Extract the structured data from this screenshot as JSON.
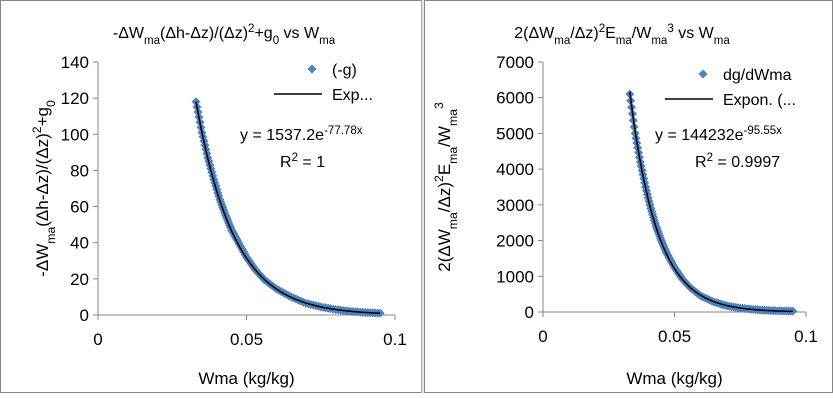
{
  "chart_data": [
    {
      "type": "scatter",
      "title_parts": [
        {
          "t": "-ΔW",
          "s": "n"
        },
        {
          "t": "ma",
          "s": "sub"
        },
        {
          "t": "(Δh-Δz)/(Δz)",
          "s": "n"
        },
        {
          "t": "2",
          "s": "sup"
        },
        {
          "t": "+g",
          "s": "n"
        },
        {
          "t": "0",
          "s": "sub"
        },
        {
          "t": " vs W",
          "s": "n"
        },
        {
          "t": "ma",
          "s": "sub"
        }
      ],
      "xlabel": "Wma (kg/kg)",
      "ylabel_parts": [
        {
          "t": "-ΔW",
          "s": "n"
        },
        {
          "t": "ma",
          "s": "sub"
        },
        {
          "t": "(Δh-Δz)/(Δz)",
          "s": "n"
        },
        {
          "t": "2",
          "s": "sup"
        },
        {
          "t": "+g",
          "s": "n"
        },
        {
          "t": "0",
          "s": "sub"
        }
      ],
      "xlim": [
        0,
        0.1
      ],
      "ylim": [
        0,
        140
      ],
      "xticks": [
        "0",
        "0.05",
        "0.1"
      ],
      "yticks": [
        "0",
        "20",
        "40",
        "60",
        "80",
        "100",
        "120",
        "140"
      ],
      "x_tick_values": [
        0,
        0.05,
        0.1
      ],
      "y_tick_values": [
        0,
        20,
        40,
        60,
        80,
        100,
        120,
        140
      ],
      "grid": false,
      "legend_position": "top-right",
      "series": [
        {
          "name": "(-g)",
          "kind": "markers",
          "color": "#4f81bd",
          "x": [
            0.033,
            0.035,
            0.037,
            0.039,
            0.041,
            0.043,
            0.045,
            0.047,
            0.05,
            0.053,
            0.056,
            0.06,
            0.065,
            0.07,
            0.075,
            0.08,
            0.085,
            0.09,
            0.095
          ],
          "y": [
            118,
            101,
            87,
            75,
            64,
            55,
            47,
            41,
            32,
            25,
            19.5,
            14.5,
            10,
            6.5,
            4.5,
            3,
            2,
            1.4,
            1
          ]
        },
        {
          "name": "Exp...",
          "kind": "trendline",
          "color": "#000000",
          "a": 1537.2,
          "b": -77.78,
          "x_range": [
            0.033,
            0.095
          ]
        }
      ],
      "annotations": [
        {
          "parts": [
            {
              "t": "y = 1537.2e",
              "s": "n"
            },
            {
              "t": "-77.78x",
              "s": "sup"
            }
          ]
        },
        {
          "parts": [
            {
              "t": "R",
              "s": "n"
            },
            {
              "t": "2",
              "s": "sup"
            },
            {
              "t": " = 1",
              "s": "n"
            }
          ]
        }
      ]
    },
    {
      "type": "scatter",
      "title_parts": [
        {
          "t": "2(ΔW",
          "s": "n"
        },
        {
          "t": "ma",
          "s": "sub"
        },
        {
          "t": "/Δz)",
          "s": "n"
        },
        {
          "t": "2",
          "s": "sup"
        },
        {
          "t": "E",
          "s": "n"
        },
        {
          "t": "ma",
          "s": "sub"
        },
        {
          "t": "/W",
          "s": "n"
        },
        {
          "t": "ma",
          "s": "sub"
        },
        {
          "t": "3",
          "s": "sup"
        },
        {
          "t": " vs W",
          "s": "n"
        },
        {
          "t": "ma",
          "s": "sub"
        }
      ],
      "xlabel": "Wma (kg/kg)",
      "ylabel_parts": [
        {
          "t": "2(ΔW",
          "s": "n"
        },
        {
          "t": "ma",
          "s": "sub"
        },
        {
          "t": "/Δz)",
          "s": "n"
        },
        {
          "t": "2",
          "s": "sup"
        },
        {
          "t": "E",
          "s": "n"
        },
        {
          "t": "ma",
          "s": "sub"
        },
        {
          "t": "/W",
          "s": "n"
        },
        {
          "t": "ma",
          "s": "sub"
        },
        {
          "t": "3",
          "s": "sup"
        }
      ],
      "xlim": [
        0,
        0.1
      ],
      "ylim": [
        0,
        7000
      ],
      "xticks": [
        "0",
        "0.05",
        "0.1"
      ],
      "yticks": [
        "0",
        "1000",
        "2000",
        "3000",
        "4000",
        "5000",
        "6000",
        "7000"
      ],
      "x_tick_values": [
        0,
        0.05,
        0.1
      ],
      "y_tick_values": [
        0,
        1000,
        2000,
        3000,
        4000,
        5000,
        6000,
        7000
      ],
      "grid": false,
      "legend_position": "top-right",
      "series": [
        {
          "name": "dg/dWma",
          "kind": "markers",
          "color": "#4f81bd",
          "x": [
            0.033,
            0.035,
            0.037,
            0.039,
            0.041,
            0.043,
            0.045,
            0.047,
            0.05,
            0.053,
            0.056,
            0.06,
            0.065,
            0.07,
            0.075,
            0.08,
            0.085,
            0.09,
            0.095
          ],
          "y": [
            6100,
            5000,
            4200,
            3500,
            2900,
            2400,
            2000,
            1650,
            1250,
            920,
            680,
            450,
            280,
            170,
            110,
            70,
            45,
            30,
            25
          ]
        },
        {
          "name": "Expon. (...",
          "kind": "trendline",
          "color": "#000000",
          "a": 144232,
          "b": -95.55,
          "x_range": [
            0.033,
            0.095
          ]
        }
      ],
      "annotations": [
        {
          "parts": [
            {
              "t": "y = 144232e",
              "s": "n"
            },
            {
              "t": "-95.55x",
              "s": "sup"
            }
          ]
        },
        {
          "parts": [
            {
              "t": "R",
              "s": "n"
            },
            {
              "t": "2",
              "s": "sup"
            },
            {
              "t": " = 0.9997",
              "s": "n"
            }
          ]
        }
      ]
    }
  ]
}
